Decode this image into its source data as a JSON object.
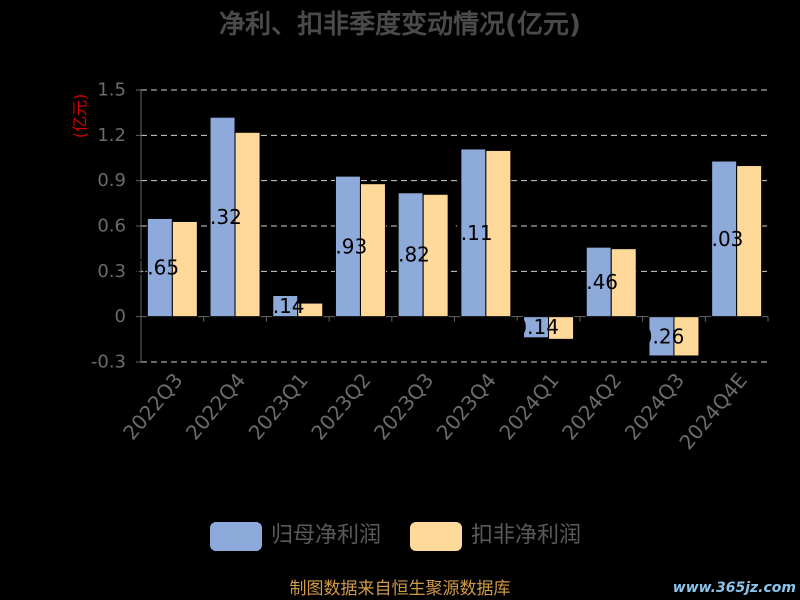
{
  "chart_data": {
    "type": "bar",
    "title": "净利、扣非季度变动情况(亿元)",
    "xlabel": "",
    "ylabel": "(亿元)",
    "categories": [
      "2022Q3",
      "2022Q4",
      "2023Q1",
      "2023Q2",
      "2023Q3",
      "2023Q4",
      "2024Q1",
      "2024Q2",
      "2024Q3",
      "2024Q4E"
    ],
    "series": [
      {
        "name": "归母净利润",
        "color": "#8eaadb",
        "show_data_labels": true,
        "values": [
          0.65,
          1.32,
          0.14,
          0.93,
          0.82,
          1.11,
          -0.14,
          0.46,
          -0.26,
          1.03
        ]
      },
      {
        "name": "扣非净利润",
        "color": "#ffd999",
        "show_data_labels": false,
        "values": [
          0.63,
          1.22,
          0.09,
          0.88,
          0.81,
          1.1,
          -0.15,
          0.45,
          -0.26,
          1.0
        ]
      }
    ],
    "ylim": [
      -0.3,
      1.5
    ],
    "yticks": [
      1.5,
      1.2,
      0.9,
      0.6,
      0.3,
      0,
      -0.3
    ],
    "grid": true,
    "legend": "bottom-center",
    "colors": {
      "background": "#000000",
      "title": "#4a4a4a",
      "ylabel": "#d40000",
      "axis": "#666666",
      "tick_label": "#6b6b6b",
      "gridline": "#d0d0d0",
      "data_label": "#000000"
    }
  },
  "footer": {
    "source": "制图数据来自恒生聚源数据库",
    "watermark": "www.365jz.com"
  }
}
